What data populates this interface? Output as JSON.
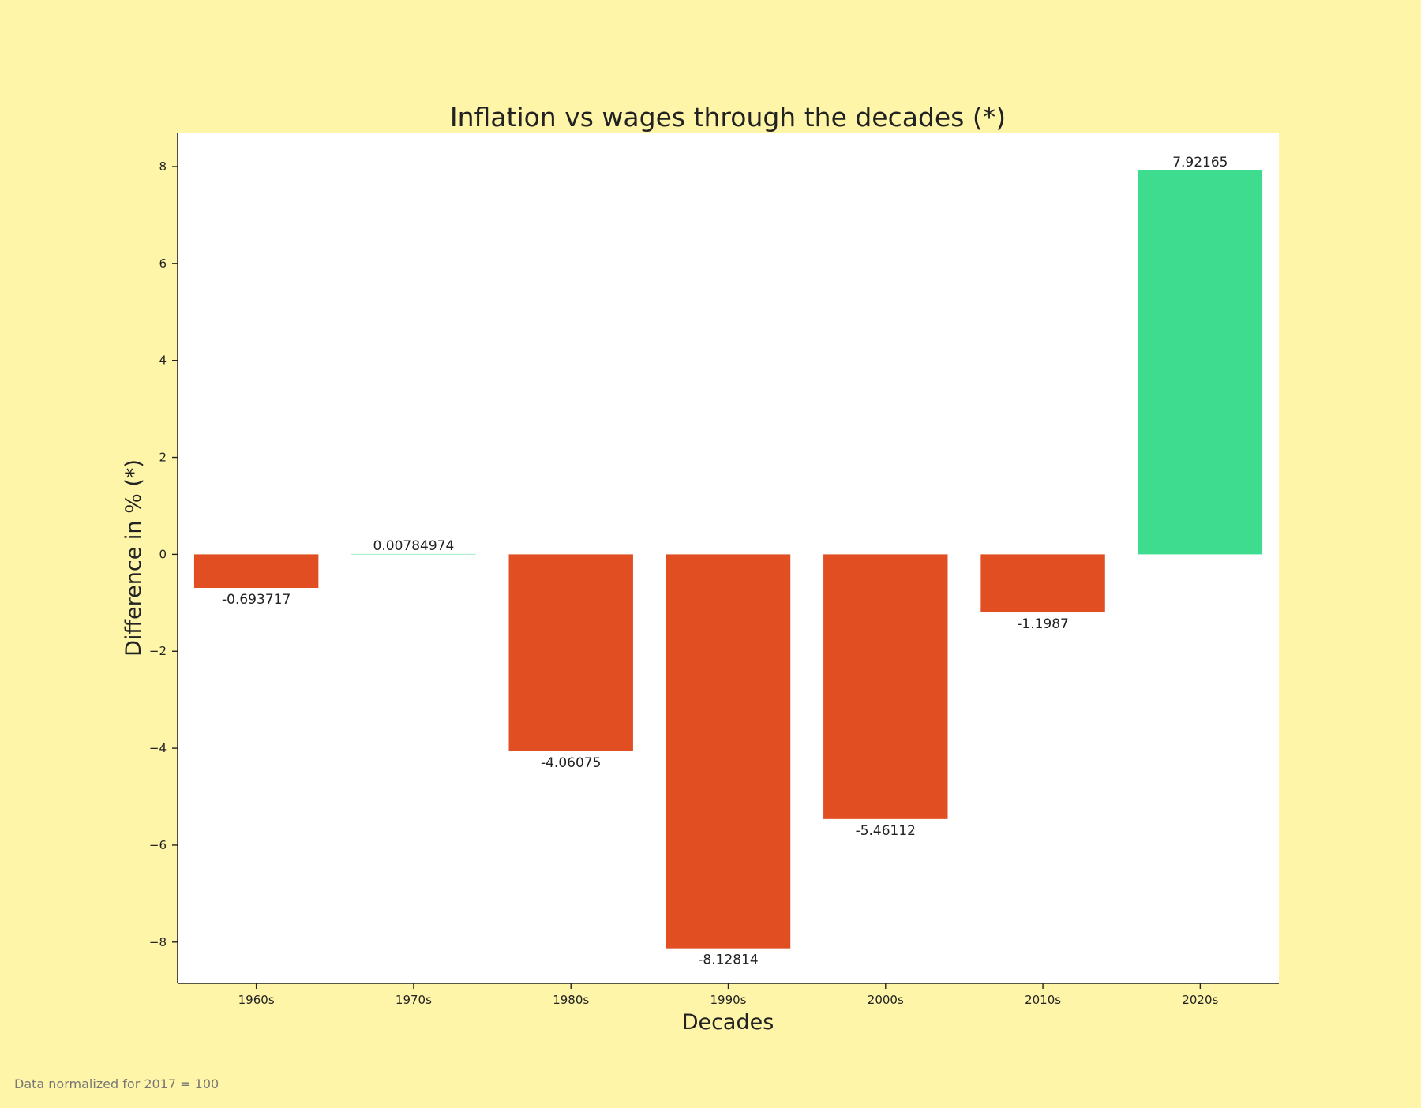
{
  "colors": {
    "page_background": "#fff5a8",
    "plot_background": "#ffffff",
    "negative_bar": "#e04e21",
    "positive_bar": "#3ddc8f",
    "axis": "#222222",
    "footnote": "#777777"
  },
  "footnote": "Data normalized for 2017 = 100",
  "chart_data": {
    "type": "bar",
    "title": "Inflation vs wages through the decades (*)",
    "xlabel": "Decades",
    "ylabel": "Difference in % (*)",
    "categories": [
      "1960s",
      "1970s",
      "1980s",
      "1990s",
      "2000s",
      "2010s",
      "2020s"
    ],
    "values": [
      -0.693717,
      0.00784974,
      -4.06075,
      -8.12814,
      -5.46112,
      -1.1987,
      7.92165
    ],
    "data_labels": [
      "-0.693717",
      "0.00784974",
      "-4.06075",
      "-8.12814",
      "-5.46112",
      "-1.1987",
      "7.92165"
    ],
    "ylim": [
      -8.85,
      8.7
    ],
    "yticks": [
      -8,
      -6,
      -4,
      -2,
      0,
      2,
      4,
      6,
      8
    ],
    "ytick_labels": [
      "−8",
      "−6",
      "−4",
      "−2",
      "0",
      "2",
      "4",
      "6",
      "8"
    ],
    "grid": false,
    "legend": "none",
    "bar_color_rule": "negative values in negative_bar color, positive values in positive_bar color"
  }
}
